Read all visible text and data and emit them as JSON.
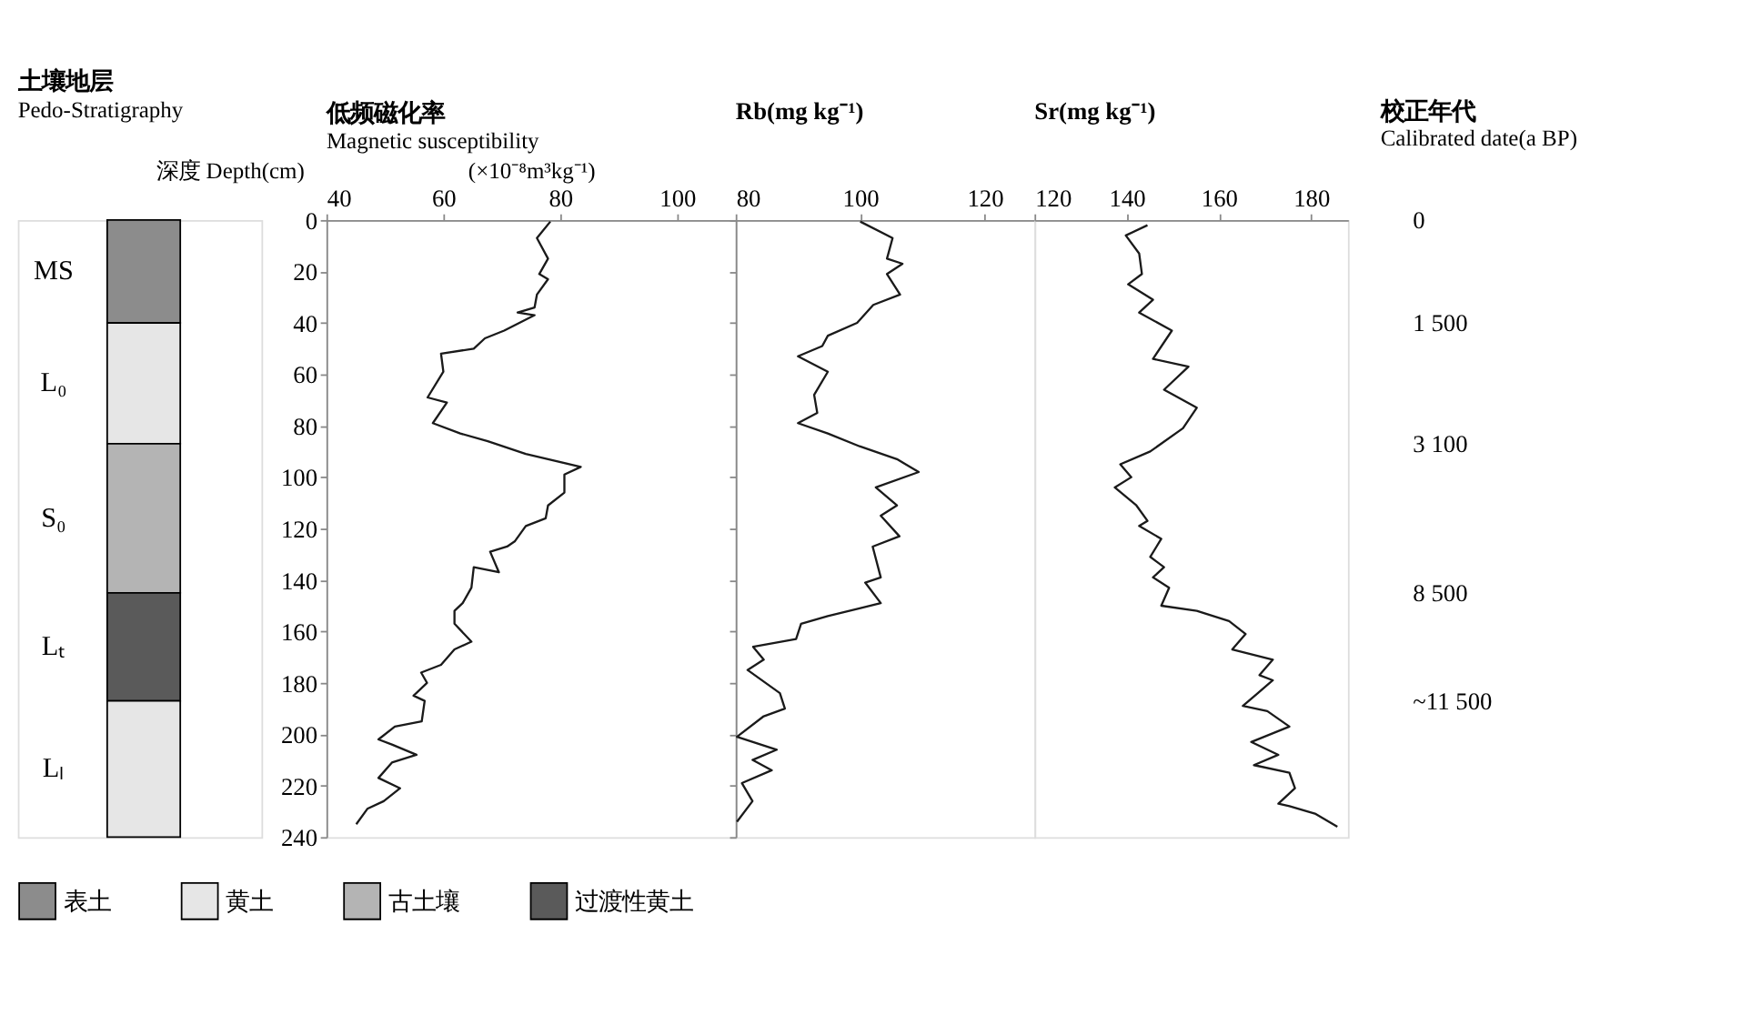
{
  "chart_data": [
    {
      "type": "bar",
      "title": "土壤地层",
      "subtitle": "Pedo-Stratigraphy",
      "stacked": true,
      "categories": [
        null
      ],
      "ylim": [
        240,
        0
      ],
      "tick_labels": false,
      "legend": "bottom",
      "series": [
        {
          "name": "表土",
          "color": "#8c8c8c",
          "values": [
            40
          ]
        },
        {
          "name": "黄土",
          "color": "#e6e6e6",
          "values": [
            47
          ]
        },
        {
          "name": "古土壤",
          "color": "#b4b4b4",
          "values": [
            58
          ]
        },
        {
          "name": "过渡性黄土",
          "color": "#5a5a5a",
          "values": [
            42
          ]
        },
        {
          "color": "#e6e6e6",
          "values": [
            53
          ]
        }
      ],
      "annotations": [
        "MS",
        "L₀",
        "S₀",
        "Lₜ",
        "Lₗ"
      ]
    },
    {
      "type": "line",
      "title": "低频磁化率",
      "subtitle": "Magnetic susceptibility",
      "xlabel": "(×10⁻⁸m³kg⁻¹)",
      "ylabel": "深度 Depth(cm)",
      "xlim": [
        40,
        110
      ],
      "xticks": [
        40,
        60,
        80,
        100
      ],
      "ylim": [
        240,
        0
      ],
      "yticks": [
        0,
        20,
        40,
        60,
        80,
        100,
        120,
        140,
        160,
        180,
        200,
        220,
        240
      ],
      "line_style": "solid",
      "marker": "none",
      "series": [
        {
          "color": "#1a1a1a",
          "x": [
            78.3,
            76,
            77.9,
            76.4,
            77.9,
            76,
            75.6,
            72.7,
            75.6,
            70.4,
            67.1,
            65.2,
            59.6,
            60,
            57.3,
            60.6,
            58.2,
            62.9,
            67.6,
            74.1,
            83.5,
            80.7,
            80.7,
            77.9,
            77.5,
            74.1,
            72.2,
            70.9,
            68,
            69.5,
            65.2,
            64.8,
            63.3,
            61.9,
            61.9,
            64.8,
            61.9,
            59.6,
            56.2,
            57.2,
            54.9,
            56.8,
            56.3,
            51.7,
            48.9,
            51.2,
            55.4,
            51.2,
            48.9,
            52.6,
            49.8,
            47,
            45.1
          ],
          "values": [
            0.6,
            7,
            15,
            21,
            23,
            29,
            34,
            36,
            37,
            43,
            46,
            50,
            52,
            59,
            69,
            71,
            79,
            83,
            86,
            91,
            96,
            99,
            106,
            111,
            116,
            119,
            125,
            127,
            129,
            137,
            135,
            143,
            149,
            152,
            157,
            164,
            167,
            173,
            176,
            180,
            185,
            187,
            195,
            197,
            202,
            204,
            208,
            211,
            217,
            221,
            226,
            229,
            235
          ]
        }
      ]
    },
    {
      "type": "line",
      "title": "Rb(mg kg⁻¹)",
      "xlim": [
        80,
        128
      ],
      "xticks": [
        80,
        100,
        120
      ],
      "ylim": [
        240,
        0
      ],
      "yticks": [
        0,
        20,
        40,
        60,
        80,
        100,
        120,
        140,
        160,
        180,
        200,
        220,
        240
      ],
      "tick_labels": "x",
      "line_style": "solid",
      "marker": "none",
      "series": [
        {
          "color": "#1a1a1a",
          "x": [
            100,
            105.2,
            104.3,
            106.8,
            104.3,
            106.4,
            102.1,
            99.5,
            94.8,
            93.9,
            90,
            94.8,
            92.6,
            93.1,
            90,
            94.8,
            99.9,
            105.9,
            109.4,
            102.5,
            105.9,
            103.3,
            106.3,
            102,
            103.3,
            100.8,
            103.3,
            99.9,
            94.8,
            90.5,
            89.7,
            82.8,
            84.5,
            81.9,
            87.1,
            87.9,
            84.5,
            80.2,
            86.6,
            82.7,
            85.8,
            81,
            82.7,
            80.2
          ],
          "values": [
            0.6,
            7,
            15,
            17,
            21,
            29,
            33,
            40,
            45,
            49,
            53,
            59,
            68,
            75,
            79,
            83,
            88,
            93,
            98,
            104,
            111,
            115,
            123,
            127,
            139,
            141,
            149,
            151,
            154,
            157,
            163,
            166,
            171,
            175,
            184,
            190,
            193,
            201,
            206,
            210,
            214,
            219,
            226,
            234
          ]
        }
      ]
    },
    {
      "type": "line",
      "title": "Sr(mg kg⁻¹)",
      "xlim": [
        120,
        188
      ],
      "xticks": [
        120,
        140,
        160,
        180
      ],
      "ylim": [
        240,
        0
      ],
      "yticks": [
        0,
        20,
        40,
        60,
        80,
        100,
        120,
        140,
        160,
        180,
        200,
        220,
        240
      ],
      "tick_labels": "x",
      "line_style": "solid",
      "marker": "none",
      "series": [
        {
          "color": "#1a1a1a",
          "x": [
            144.5,
            139.8,
            142.7,
            143.3,
            140.3,
            145.7,
            142.7,
            149.8,
            145.7,
            153.4,
            148.1,
            155.2,
            152.2,
            145.1,
            138.6,
            141,
            137.4,
            142.1,
            144.5,
            142.7,
            147.5,
            145.1,
            148.1,
            145.7,
            149.2,
            147.5,
            155.2,
            162.2,
            165.8,
            162.9,
            171.7,
            168.8,
            171.7,
            165.2,
            170.5,
            175.3,
            167,
            172.9,
            167.6,
            175.3,
            176.5,
            172.9,
            175.3,
            181,
            185.7
          ],
          "values": [
            2,
            6,
            13,
            21,
            25,
            31,
            36,
            43,
            54,
            57,
            66,
            73,
            81,
            90,
            95,
            100,
            104,
            111,
            117,
            119,
            124,
            131,
            135,
            139,
            143,
            150,
            152,
            156,
            161,
            167,
            171,
            177,
            179,
            189,
            191,
            197,
            203,
            208,
            212,
            215,
            221,
            227,
            228,
            231,
            236
          ]
        }
      ],
      "annotations": [
        "校正年代",
        "Calibrated date(a BP)",
        "0",
        "1 500",
        "3 100",
        "8 500",
        "~11 500"
      ]
    }
  ]
}
